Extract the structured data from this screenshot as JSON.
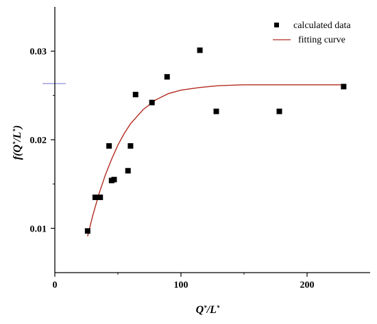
{
  "chart_data": {
    "type": "scatter",
    "xlabel": {
      "parts": [
        {
          "text": "Q",
          "sup": false
        },
        {
          "text": "*",
          "sup": true
        },
        {
          "text": "/L",
          "sup": false
        },
        {
          "text": "*",
          "sup": true
        }
      ]
    },
    "ylabel": {
      "parts": [
        {
          "text": "f(Q",
          "sup": false
        },
        {
          "text": "*",
          "sup": true
        },
        {
          "text": "/L",
          "sup": false
        },
        {
          "text": "*",
          "sup": true
        },
        {
          "text": ")",
          "sup": false
        }
      ]
    },
    "xlim": [
      0,
      250
    ],
    "ylim": [
      0.005,
      0.035
    ],
    "xticks": [
      0,
      100,
      200
    ],
    "xtick_labels": [
      "0",
      "100",
      "200"
    ],
    "yticks": [
      0.01,
      0.02,
      0.03
    ],
    "ytick_labels": [
      "0.01",
      "0.02",
      "0.03"
    ],
    "grid": false,
    "legend_position": "top-right",
    "series": [
      {
        "name": "calculated data",
        "kind": "scatter",
        "marker": "square",
        "color": "#000000",
        "points": [
          {
            "x": 26,
            "y": 0.0097
          },
          {
            "x": 32,
            "y": 0.0135
          },
          {
            "x": 36,
            "y": 0.0135
          },
          {
            "x": 43,
            "y": 0.0193
          },
          {
            "x": 45,
            "y": 0.0154
          },
          {
            "x": 47,
            "y": 0.0155
          },
          {
            "x": 58,
            "y": 0.0165
          },
          {
            "x": 60,
            "y": 0.0193
          },
          {
            "x": 64,
            "y": 0.0251
          },
          {
            "x": 77,
            "y": 0.0242
          },
          {
            "x": 89,
            "y": 0.0271
          },
          {
            "x": 115,
            "y": 0.0301
          },
          {
            "x": 128,
            "y": 0.0232
          },
          {
            "x": 178,
            "y": 0.0232
          },
          {
            "x": 229,
            "y": 0.026
          }
        ]
      },
      {
        "name": "fitting curve",
        "kind": "line",
        "color": "#b22a1e",
        "points": [
          {
            "x": 26,
            "y": 0.0091
          },
          {
            "x": 30,
            "y": 0.0114
          },
          {
            "x": 35,
            "y": 0.0139
          },
          {
            "x": 40,
            "y": 0.016
          },
          {
            "x": 45,
            "y": 0.0178
          },
          {
            "x": 50,
            "y": 0.0194
          },
          {
            "x": 55,
            "y": 0.0207
          },
          {
            "x": 60,
            "y": 0.0218
          },
          {
            "x": 70,
            "y": 0.0234
          },
          {
            "x": 80,
            "y": 0.0245
          },
          {
            "x": 90,
            "y": 0.0252
          },
          {
            "x": 100,
            "y": 0.0256
          },
          {
            "x": 115,
            "y": 0.0259
          },
          {
            "x": 130,
            "y": 0.0261
          },
          {
            "x": 150,
            "y": 0.0262
          },
          {
            "x": 180,
            "y": 0.0262
          },
          {
            "x": 229,
            "y": 0.0262
          }
        ]
      }
    ]
  }
}
